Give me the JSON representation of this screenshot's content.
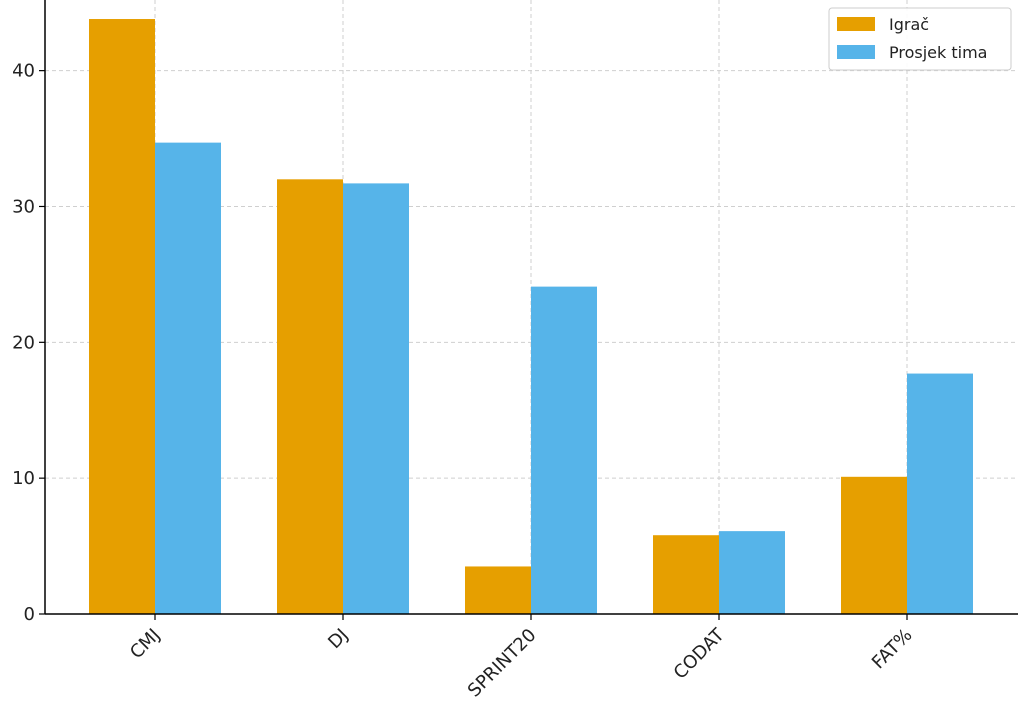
{
  "chart_data": {
    "type": "bar",
    "title": "",
    "xlabel": "",
    "ylabel": "",
    "categories": [
      "CMJ",
      "DJ",
      "SPRINT20",
      "CODAT",
      "FAT%"
    ],
    "series": [
      {
        "name": "Igrač",
        "color": "#E69F00",
        "values": [
          43.8,
          32.0,
          3.5,
          5.8,
          10.1
        ]
      },
      {
        "name": "Prosjek tima",
        "color": "#56B4E9",
        "values": [
          34.7,
          31.7,
          24.1,
          6.1,
          17.7
        ]
      }
    ],
    "ylim": [
      0,
      45.2
    ],
    "yticks": [
      0,
      10,
      20,
      30,
      40
    ],
    "grid": true,
    "legend_position": "top-right"
  }
}
